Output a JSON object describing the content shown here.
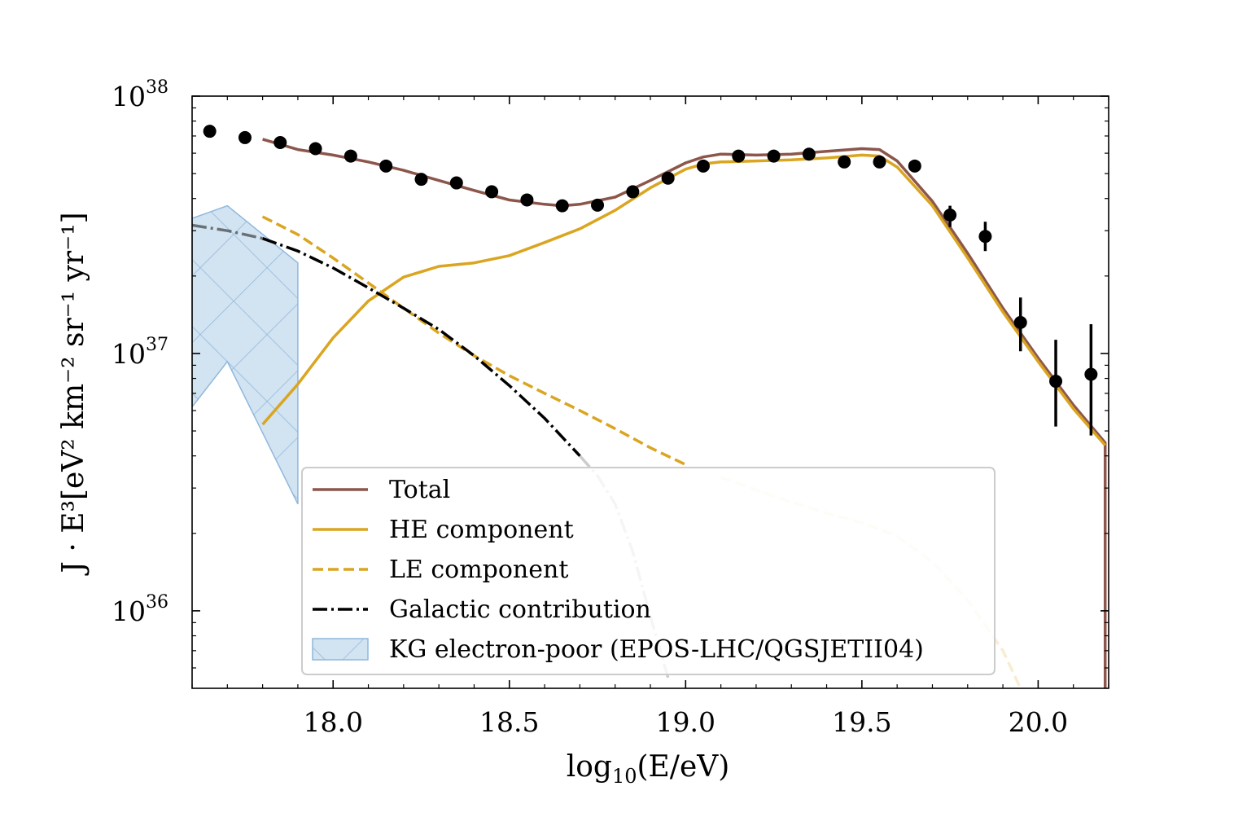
{
  "chart_data": {
    "type": "line",
    "xlabel_base": "log",
    "xlabel_sub": "10",
    "xlabel_rest": "(E/eV)",
    "ylabel": "J · E³[eV² km⁻² sr⁻¹ yr⁻¹]",
    "xlim": [
      17.6,
      20.2
    ],
    "ylim": [
      5e+35,
      1e+38
    ],
    "yscale": "log",
    "x_ticks": [
      "18.0",
      "18.5",
      "19.0",
      "19.5",
      "20.0"
    ],
    "y_ticks": [
      {
        "base": "10",
        "exp": "36",
        "value": 1e+36
      },
      {
        "base": "10",
        "exp": "37",
        "value": 1e+37
      },
      {
        "base": "10",
        "exp": "38",
        "value": 1e+38
      }
    ],
    "legend_position": "lower center",
    "colors": {
      "total": "#8c564b",
      "he": "#daa520",
      "galactic": "#000000",
      "band": "#a6c8e3",
      "data": "#000000"
    },
    "series": [
      {
        "name": "Total",
        "style": "solid",
        "color": "#8c564b",
        "x": [
          17.8,
          17.9,
          18.0,
          18.1,
          18.2,
          18.3,
          18.4,
          18.5,
          18.6,
          18.65,
          18.7,
          18.8,
          18.9,
          19.0,
          19.05,
          19.1,
          19.2,
          19.3,
          19.4,
          19.5,
          19.55,
          19.6,
          19.7,
          19.8,
          19.9,
          20.0,
          20.1,
          20.19,
          20.19
        ],
        "y": [
          6.8e+37,
          6.2e+37,
          5.9e+37,
          5.55e+37,
          5.15e+37,
          4.7e+37,
          4.3e+37,
          3.95e+37,
          3.8e+37,
          3.75e+37,
          3.8e+37,
          4.05e+37,
          4.7e+37,
          5.5e+37,
          5.8e+37,
          5.95e+37,
          5.9e+37,
          5.95e+37,
          6.1e+37,
          6.25e+37,
          6.2e+37,
          5.6e+37,
          3.9e+37,
          2.45e+37,
          1.5e+37,
          9.6e+36,
          6.3e+36,
          4.5e+36,
          5e+35
        ]
      },
      {
        "name": "HE component",
        "style": "solid",
        "color": "#daa520",
        "x": [
          17.8,
          17.9,
          18.0,
          18.1,
          18.2,
          18.3,
          18.4,
          18.5,
          18.6,
          18.7,
          18.8,
          18.9,
          19.0,
          19.05,
          19.1,
          19.2,
          19.3,
          19.4,
          19.5,
          19.55,
          19.6,
          19.7,
          19.8,
          19.9,
          20.0,
          20.1,
          20.19
        ],
        "y": [
          5.3e+36,
          7.6e+36,
          1.15e+37,
          1.6e+37,
          1.98e+37,
          2.18e+37,
          2.25e+37,
          2.4e+37,
          2.7e+37,
          3.05e+37,
          3.6e+37,
          4.4e+37,
          5.2e+37,
          5.45e+37,
          5.55e+37,
          5.6e+37,
          5.65e+37,
          5.75e+37,
          5.9e+37,
          5.85e+37,
          5.3e+37,
          3.75e+37,
          2.35e+37,
          1.45e+37,
          9.3e+36,
          6.1e+36,
          4.4e+36
        ]
      },
      {
        "name": "LE component",
        "style": "dashed",
        "color": "#daa520",
        "x": [
          17.8,
          17.9,
          18.0,
          18.1,
          18.2,
          18.3,
          18.4,
          18.5,
          18.6,
          18.7,
          18.8,
          18.9,
          19.0,
          19.1,
          19.2,
          19.3,
          19.4,
          19.5,
          19.6,
          19.7,
          19.8,
          19.9,
          19.95
        ],
        "y": [
          3.4e+37,
          2.9e+37,
          2.35e+37,
          1.88e+37,
          1.5e+37,
          1.2e+37,
          9.8e+36,
          8.2e+36,
          7e+36,
          6e+36,
          5.1e+36,
          4.3e+36,
          3.7e+36,
          3.3e+36,
          2.95e+36,
          2.65e+36,
          2.4e+36,
          2.2e+36,
          1.95e+36,
          1.55e+36,
          1.1e+36,
          7e+35,
          5e+35
        ],
        "faded_after_x": 19.05
      },
      {
        "name": "Galactic contribution",
        "style": "dashdot",
        "color": "#000000",
        "x": [
          17.6,
          17.7,
          17.8,
          17.9,
          18.0,
          18.1,
          18.2,
          18.3,
          18.4,
          18.5,
          18.6,
          18.7,
          18.75,
          18.8,
          18.85,
          18.9,
          18.95
        ],
        "y": [
          3.15e+37,
          3e+37,
          2.8e+37,
          2.5e+37,
          2.15e+37,
          1.8e+37,
          1.5e+37,
          1.24e+37,
          9.8e+36,
          7.5e+36,
          5.6e+36,
          4e+36,
          3.35e+36,
          2.6e+36,
          1.7e+36,
          9.5e+35,
          5.5e+35
        ],
        "faded_before_x": 17.8,
        "faded_after_x": 18.7
      }
    ],
    "band": {
      "name": "KG electron-poor (EPOS-LHC/QGSJETII04)",
      "color": "#a6c8e3",
      "x": [
        17.6,
        17.7,
        17.9
      ],
      "upper": [
        3.35e+37,
        3.75e+37,
        2.25e+37
      ],
      "lower": [
        6.2e+36,
        9.3e+36,
        2.6e+36
      ]
    },
    "data_points": {
      "x": [
        17.65,
        17.75,
        17.85,
        17.95,
        18.05,
        18.15,
        18.25,
        18.35,
        18.45,
        18.55,
        18.65,
        18.75,
        18.85,
        18.95,
        19.05,
        19.15,
        19.25,
        19.35,
        19.45,
        19.55,
        19.65,
        19.75,
        19.85,
        19.95,
        20.05,
        20.15
      ],
      "y": [
        7.3e+37,
        6.9e+37,
        6.6e+37,
        6.25e+37,
        5.85e+37,
        5.35e+37,
        4.75e+37,
        4.6e+37,
        4.25e+37,
        3.95e+37,
        3.75e+37,
        3.77e+37,
        4.25e+37,
        4.8e+37,
        5.35e+37,
        5.85e+37,
        5.85e+37,
        5.95e+37,
        5.55e+37,
        5.55e+37,
        5.35e+37,
        3.45e+37,
        2.85e+37,
        1.32e+37,
        7.8e+36,
        8.3e+36
      ],
      "yerr_low": [
        0,
        0,
        0,
        0,
        0,
        0,
        0,
        0,
        0,
        0,
        0,
        0,
        0,
        0,
        0,
        0,
        0,
        0,
        0,
        0,
        0,
        3.1e+37,
        2.5e+37,
        1.02e+37,
        5.2e+36,
        4.8e+36
      ],
      "yerr_high": [
        0,
        0,
        0,
        0,
        0,
        0,
        0,
        0,
        0,
        0,
        0,
        0,
        0,
        0,
        0,
        0,
        0,
        0,
        0,
        0,
        0,
        3.75e+37,
        3.25e+37,
        1.65e+37,
        1.13e+37,
        1.3e+37
      ]
    },
    "legend": [
      {
        "label": "Total",
        "style": "solid",
        "color": "#8c564b"
      },
      {
        "label": "HE component",
        "style": "solid",
        "color": "#daa520"
      },
      {
        "label": "LE component",
        "style": "dashed",
        "color": "#daa520"
      },
      {
        "label": "Galactic contribution",
        "style": "dashdot",
        "color": "#000000"
      },
      {
        "label": "KG electron-poor (EPOS-LHC/QGSJETII04)",
        "style": "band",
        "color": "#a6c8e3"
      }
    ]
  }
}
